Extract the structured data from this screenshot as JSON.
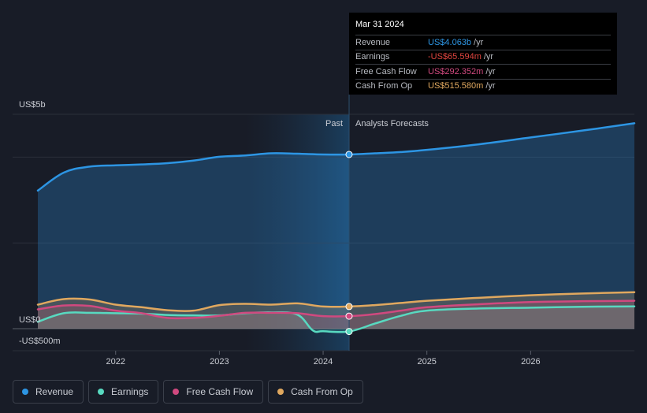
{
  "chart_data": {
    "type": "area",
    "title": "",
    "y_axis": {
      "min": -500,
      "max": 5000,
      "unit": "US$m",
      "labels": [
        "US$5b",
        "US$0",
        "-US$500m"
      ]
    },
    "x_axis": {
      "min": 2021.25,
      "max": 2027.0,
      "ticks": [
        "2022",
        "2023",
        "2024",
        "2025",
        "2026"
      ]
    },
    "divider_year": 2024.25,
    "past_label": "Past",
    "forecast_label": "Analysts Forecasts",
    "series": [
      {
        "name": "Revenue",
        "color": "#2d95e3",
        "points": [
          [
            2021.25,
            3220
          ],
          [
            2021.5,
            3640
          ],
          [
            2021.75,
            3780
          ],
          [
            2022.0,
            3810
          ],
          [
            2022.25,
            3830
          ],
          [
            2022.5,
            3860
          ],
          [
            2022.75,
            3920
          ],
          [
            2023.0,
            4010
          ],
          [
            2023.25,
            4040
          ],
          [
            2023.5,
            4090
          ],
          [
            2023.75,
            4080
          ],
          [
            2024.0,
            4063
          ],
          [
            2024.25,
            4063
          ],
          [
            2024.5,
            4090
          ],
          [
            2024.75,
            4120
          ],
          [
            2025.0,
            4170
          ],
          [
            2025.5,
            4300
          ],
          [
            2026.0,
            4460
          ],
          [
            2026.5,
            4620
          ],
          [
            2027.0,
            4790
          ]
        ]
      },
      {
        "name": "Earnings",
        "color": "#58d9c0",
        "points": [
          [
            2021.25,
            160
          ],
          [
            2021.5,
            360
          ],
          [
            2021.75,
            370
          ],
          [
            2022.0,
            360
          ],
          [
            2022.25,
            350
          ],
          [
            2022.5,
            320
          ],
          [
            2022.75,
            310
          ],
          [
            2023.0,
            310
          ],
          [
            2023.25,
            360
          ],
          [
            2023.5,
            380
          ],
          [
            2023.75,
            330
          ],
          [
            2023.9,
            -40
          ],
          [
            2024.0,
            -60
          ],
          [
            2024.25,
            -66
          ],
          [
            2024.5,
            120
          ],
          [
            2024.75,
            300
          ],
          [
            2025.0,
            420
          ],
          [
            2025.5,
            470
          ],
          [
            2026.0,
            490
          ],
          [
            2026.5,
            510
          ],
          [
            2027.0,
            520
          ]
        ]
      },
      {
        "name": "Free Cash Flow",
        "color": "#d0497f",
        "points": [
          [
            2021.25,
            450
          ],
          [
            2021.5,
            540
          ],
          [
            2021.75,
            530
          ],
          [
            2022.0,
            420
          ],
          [
            2022.25,
            360
          ],
          [
            2022.5,
            250
          ],
          [
            2022.75,
            250
          ],
          [
            2023.0,
            300
          ],
          [
            2023.25,
            370
          ],
          [
            2023.5,
            370
          ],
          [
            2023.75,
            360
          ],
          [
            2024.0,
            292
          ],
          [
            2024.25,
            292
          ],
          [
            2024.5,
            340
          ],
          [
            2024.75,
            420
          ],
          [
            2025.0,
            500
          ],
          [
            2025.5,
            570
          ],
          [
            2026.0,
            620
          ],
          [
            2026.5,
            640
          ],
          [
            2027.0,
            650
          ]
        ]
      },
      {
        "name": "Cash From Op",
        "color": "#e0a85f",
        "points": [
          [
            2021.25,
            560
          ],
          [
            2021.5,
            690
          ],
          [
            2021.75,
            680
          ],
          [
            2022.0,
            560
          ],
          [
            2022.25,
            500
          ],
          [
            2022.5,
            430
          ],
          [
            2022.75,
            420
          ],
          [
            2023.0,
            550
          ],
          [
            2023.25,
            580
          ],
          [
            2023.5,
            560
          ],
          [
            2023.75,
            590
          ],
          [
            2024.0,
            516
          ],
          [
            2024.25,
            516
          ],
          [
            2024.5,
            550
          ],
          [
            2024.75,
            600
          ],
          [
            2025.0,
            650
          ],
          [
            2025.5,
            720
          ],
          [
            2026.0,
            780
          ],
          [
            2026.5,
            820
          ],
          [
            2027.0,
            850
          ]
        ]
      }
    ]
  },
  "tooltip": {
    "date": "Mar 31 2024",
    "rows": [
      {
        "label": "Revenue",
        "value": "US$4.063b",
        "unit": "/yr",
        "color": "#2d95e3"
      },
      {
        "label": "Earnings",
        "value": "-US$65.594m",
        "unit": "/yr",
        "color": "#e0453f"
      },
      {
        "label": "Free Cash Flow",
        "value": "US$292.352m",
        "unit": "/yr",
        "color": "#d0497f"
      },
      {
        "label": "Cash From Op",
        "value": "US$515.580m",
        "unit": "/yr",
        "color": "#e0a85f"
      }
    ]
  },
  "legend": [
    {
      "label": "Revenue",
      "color": "#2d95e3"
    },
    {
      "label": "Earnings",
      "color": "#58d9c0"
    },
    {
      "label": "Free Cash Flow",
      "color": "#d0497f"
    },
    {
      "label": "Cash From Op",
      "color": "#e0a85f"
    }
  ]
}
